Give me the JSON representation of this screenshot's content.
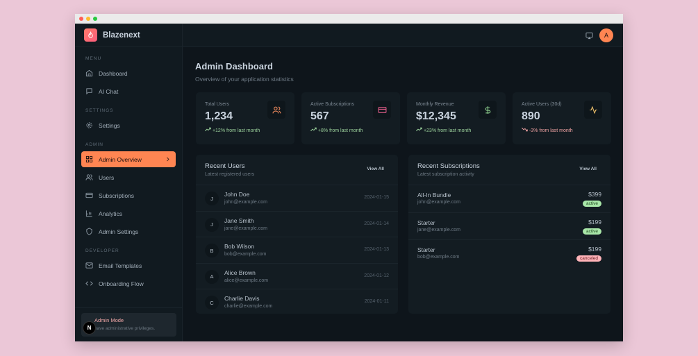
{
  "app": {
    "name": "Blazenext"
  },
  "sidebar": {
    "sections": [
      {
        "title": "MENU"
      },
      {
        "title": "SETTINGS"
      },
      {
        "title": "ADMIN"
      },
      {
        "title": "DEVELOPER"
      }
    ],
    "items": [
      {
        "label": "Dashboard"
      },
      {
        "label": "AI Chat"
      },
      {
        "label": "Settings"
      },
      {
        "label": "Admin Overview"
      },
      {
        "label": "Users"
      },
      {
        "label": "Subscriptions"
      },
      {
        "label": "Analytics"
      },
      {
        "label": "Admin Settings"
      },
      {
        "label": "Email Templates"
      },
      {
        "label": "Onboarding Flow"
      }
    ],
    "admin_mode": {
      "title": "Admin Mode",
      "subtitle": "have administrative privileges."
    },
    "n_badge": "N"
  },
  "header": {
    "avatar": "A"
  },
  "page": {
    "title": "Admin Dashboard",
    "subtitle": "Overview of your application statistics"
  },
  "stats": [
    {
      "label": "Total Users",
      "value": "1,234",
      "change": "+12% from last month",
      "trend": "up",
      "icon": "users-icon",
      "color": "#f08a5d"
    },
    {
      "label": "Active Subscriptions",
      "value": "567",
      "change": "+8% from last month",
      "trend": "up",
      "icon": "credit-card-icon",
      "color": "#e35d8a"
    },
    {
      "label": "Monthly Revenue",
      "value": "$12,345",
      "change": "+23% from last month",
      "trend": "up",
      "icon": "dollar-icon",
      "color": "#8fd18f"
    },
    {
      "label": "Active Users (30d)",
      "value": "890",
      "change": "-3% from last month",
      "trend": "down",
      "icon": "activity-icon",
      "color": "#f3c26b"
    }
  ],
  "recent_users": {
    "title": "Recent Users",
    "subtitle": "Latest registered users",
    "view_all": "View All",
    "rows": [
      {
        "initial": "J",
        "name": "John Doe",
        "email": "john@example.com",
        "date": "2024-01-15"
      },
      {
        "initial": "J",
        "name": "Jane Smith",
        "email": "jane@example.com",
        "date": "2024-01-14"
      },
      {
        "initial": "B",
        "name": "Bob Wilson",
        "email": "bob@example.com",
        "date": "2024-01-13"
      },
      {
        "initial": "A",
        "name": "Alice Brown",
        "email": "alice@example.com",
        "date": "2024-01-12"
      },
      {
        "initial": "C",
        "name": "Charlie Davis",
        "email": "charlie@example.com",
        "date": "2024-01-11"
      }
    ]
  },
  "recent_subscriptions": {
    "title": "Recent Subscriptions",
    "subtitle": "Latest subscription activity",
    "view_all": "View All",
    "rows": [
      {
        "plan": "All-In Bundle",
        "email": "john@example.com",
        "price": "$399",
        "status": "active"
      },
      {
        "plan": "Starter",
        "email": "jane@example.com",
        "price": "$199",
        "status": "active"
      },
      {
        "plan": "Starter",
        "email": "bob@example.com",
        "price": "$199",
        "status": "canceled"
      }
    ]
  }
}
